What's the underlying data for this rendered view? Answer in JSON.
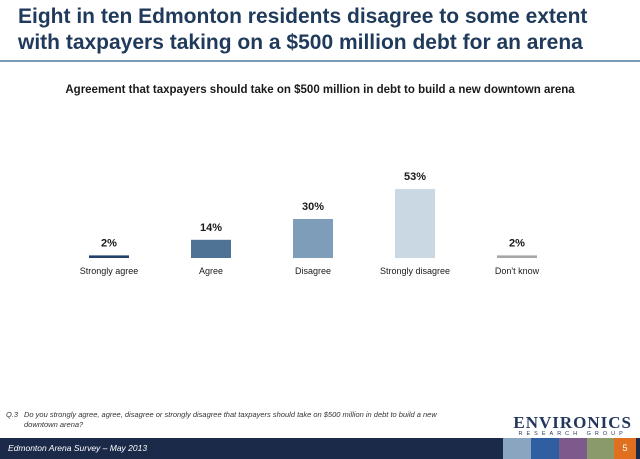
{
  "slide": {
    "title": "Eight in ten Edmonton residents disagree to some extent with taxpayers taking on a $500 million debt for an arena"
  },
  "chart_data": {
    "type": "bar",
    "title": "Agreement that taxpayers should take on $500 million in debt to  build a new downtown arena",
    "categories": [
      "Strongly agree",
      "Agree",
      "Disagree",
      "Strongly disagree",
      "Don't know"
    ],
    "values": [
      2,
      14,
      30,
      53,
      2
    ],
    "value_labels": [
      "2%",
      "14%",
      "30%",
      "53%",
      "2%"
    ],
    "colors": [
      "#23406a",
      "#4e7394",
      "#7d9db9",
      "#cad8e4",
      "#a6a6a6"
    ],
    "ylim": [
      0,
      60
    ],
    "grid": false,
    "legend": "none"
  },
  "footnote": {
    "number": "Q.3",
    "text": "Do you strongly agree, agree, disagree or strongly disagree that taxpayers should take on $500 million in debt to build a new downtown arena?"
  },
  "footer": {
    "survey": "Edmonton Arena Survey – May 2013",
    "page": "5",
    "block_colors": [
      "#8aa5bf",
      "#2f5fa0",
      "#7d5a8c",
      "#8a9a6a"
    ]
  },
  "logo": {
    "name": "ENVIRONICS",
    "tagline": "RESEARCH GROUP"
  }
}
